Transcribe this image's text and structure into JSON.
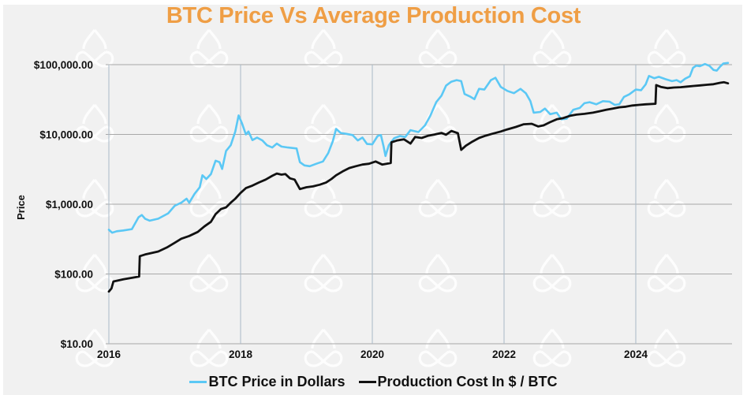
{
  "chart_data": {
    "type": "line",
    "title": "BTC Price Vs Average Production Cost",
    "xlabel": "",
    "ylabel": "Price",
    "y_scale": "log",
    "ylim": [
      10,
      100000
    ],
    "xlim": [
      2016.0,
      2025.4
    ],
    "y_ticks": [
      {
        "value": 100000,
        "label": "$100,000.00"
      },
      {
        "value": 10000,
        "label": "$10,000.00"
      },
      {
        "value": 1000,
        "label": "$1,000.00"
      },
      {
        "value": 100,
        "label": "$100.00"
      },
      {
        "value": 10,
        "label": "$10.00"
      }
    ],
    "x_ticks": [
      {
        "value": 2016,
        "label": "2016"
      },
      {
        "value": 2018,
        "label": "2018"
      },
      {
        "value": 2020,
        "label": "2020"
      },
      {
        "value": 2022,
        "label": "2022"
      },
      {
        "value": 2024,
        "label": "2024"
      }
    ],
    "grid": true,
    "legend_position": "bottom",
    "series": [
      {
        "name": "BTC Price in Dollars",
        "color": "#5bc8f5",
        "points": [
          [
            2016.0,
            430
          ],
          [
            2016.05,
            390
          ],
          [
            2016.12,
            410
          ],
          [
            2016.22,
            420
          ],
          [
            2016.35,
            440
          ],
          [
            2016.45,
            650
          ],
          [
            2016.5,
            700
          ],
          [
            2016.55,
            620
          ],
          [
            2016.62,
            580
          ],
          [
            2016.75,
            620
          ],
          [
            2016.9,
            740
          ],
          [
            2017.0,
            950
          ],
          [
            2017.1,
            1050
          ],
          [
            2017.18,
            1200
          ],
          [
            2017.22,
            1050
          ],
          [
            2017.3,
            1400
          ],
          [
            2017.38,
            1750
          ],
          [
            2017.42,
            2600
          ],
          [
            2017.48,
            2300
          ],
          [
            2017.55,
            2700
          ],
          [
            2017.62,
            4200
          ],
          [
            2017.68,
            4000
          ],
          [
            2017.72,
            3200
          ],
          [
            2017.78,
            5800
          ],
          [
            2017.85,
            7000
          ],
          [
            2017.92,
            11000
          ],
          [
            2017.97,
            18700
          ],
          [
            2018.02,
            14500
          ],
          [
            2018.08,
            10000
          ],
          [
            2018.12,
            11000
          ],
          [
            2018.18,
            8300
          ],
          [
            2018.25,
            9000
          ],
          [
            2018.33,
            8200
          ],
          [
            2018.4,
            7000
          ],
          [
            2018.48,
            6500
          ],
          [
            2018.55,
            7400
          ],
          [
            2018.62,
            6700
          ],
          [
            2018.72,
            6500
          ],
          [
            2018.85,
            6300
          ],
          [
            2018.9,
            4000
          ],
          [
            2018.97,
            3600
          ],
          [
            2019.05,
            3500
          ],
          [
            2019.15,
            3800
          ],
          [
            2019.25,
            4100
          ],
          [
            2019.33,
            5400
          ],
          [
            2019.4,
            8000
          ],
          [
            2019.45,
            12000
          ],
          [
            2019.52,
            10500
          ],
          [
            2019.6,
            10200
          ],
          [
            2019.7,
            9800
          ],
          [
            2019.78,
            8200
          ],
          [
            2019.85,
            9000
          ],
          [
            2019.92,
            7300
          ],
          [
            2020.0,
            7200
          ],
          [
            2020.08,
            9500
          ],
          [
            2020.13,
            9800
          ],
          [
            2020.17,
            6800
          ],
          [
            2020.2,
            4900
          ],
          [
            2020.25,
            7000
          ],
          [
            2020.33,
            8800
          ],
          [
            2020.42,
            9500
          ],
          [
            2020.5,
            9200
          ],
          [
            2020.58,
            11500
          ],
          [
            2020.7,
            10800
          ],
          [
            2020.8,
            13500
          ],
          [
            2020.88,
            18500
          ],
          [
            2020.97,
            29000
          ],
          [
            2021.05,
            36000
          ],
          [
            2021.12,
            50000
          ],
          [
            2021.2,
            57000
          ],
          [
            2021.28,
            60000
          ],
          [
            2021.35,
            58000
          ],
          [
            2021.4,
            38000
          ],
          [
            2021.48,
            35000
          ],
          [
            2021.55,
            32000
          ],
          [
            2021.62,
            45000
          ],
          [
            2021.7,
            44000
          ],
          [
            2021.8,
            60000
          ],
          [
            2021.87,
            65000
          ],
          [
            2021.95,
            48000
          ],
          [
            2022.05,
            42000
          ],
          [
            2022.15,
            39000
          ],
          [
            2022.25,
            45000
          ],
          [
            2022.33,
            39000
          ],
          [
            2022.4,
            30000
          ],
          [
            2022.45,
            20500
          ],
          [
            2022.55,
            21000
          ],
          [
            2022.62,
            23500
          ],
          [
            2022.7,
            19500
          ],
          [
            2022.8,
            20500
          ],
          [
            2022.87,
            16500
          ],
          [
            2022.95,
            16800
          ],
          [
            2023.05,
            22500
          ],
          [
            2023.15,
            24000
          ],
          [
            2023.22,
            28000
          ],
          [
            2023.3,
            29000
          ],
          [
            2023.4,
            27000
          ],
          [
            2023.5,
            30000
          ],
          [
            2023.6,
            29500
          ],
          [
            2023.68,
            26500
          ],
          [
            2023.75,
            27000
          ],
          [
            2023.82,
            34500
          ],
          [
            2023.9,
            37500
          ],
          [
            2024.0,
            44000
          ],
          [
            2024.08,
            43000
          ],
          [
            2024.15,
            52000
          ],
          [
            2024.2,
            69000
          ],
          [
            2024.28,
            64000
          ],
          [
            2024.35,
            67000
          ],
          [
            2024.45,
            62000
          ],
          [
            2024.55,
            58000
          ],
          [
            2024.62,
            60000
          ],
          [
            2024.68,
            56000
          ],
          [
            2024.75,
            63000
          ],
          [
            2024.82,
            68000
          ],
          [
            2024.87,
            90000
          ],
          [
            2024.92,
            97000
          ],
          [
            2024.97,
            95000
          ],
          [
            2025.05,
            102000
          ],
          [
            2025.12,
            96000
          ],
          [
            2025.18,
            84000
          ],
          [
            2025.23,
            82000
          ],
          [
            2025.28,
            94000
          ],
          [
            2025.33,
            104000
          ],
          [
            2025.4,
            106000
          ]
        ]
      },
      {
        "name": "Production Cost In $ / BTC",
        "color": "#111111",
        "points": [
          [
            2016.0,
            56
          ],
          [
            2016.04,
            62
          ],
          [
            2016.07,
            78
          ],
          [
            2016.12,
            80
          ],
          [
            2016.22,
            84
          ],
          [
            2016.35,
            88
          ],
          [
            2016.46,
            92
          ],
          [
            2016.47,
            180
          ],
          [
            2016.55,
            190
          ],
          [
            2016.65,
            200
          ],
          [
            2016.75,
            210
          ],
          [
            2016.88,
            240
          ],
          [
            2017.0,
            280
          ],
          [
            2017.1,
            320
          ],
          [
            2017.22,
            350
          ],
          [
            2017.35,
            400
          ],
          [
            2017.45,
            480
          ],
          [
            2017.55,
            560
          ],
          [
            2017.62,
            720
          ],
          [
            2017.7,
            850
          ],
          [
            2017.78,
            900
          ],
          [
            2017.85,
            1050
          ],
          [
            2017.92,
            1200
          ],
          [
            2018.0,
            1450
          ],
          [
            2018.08,
            1700
          ],
          [
            2018.18,
            1850
          ],
          [
            2018.28,
            2050
          ],
          [
            2018.38,
            2250
          ],
          [
            2018.48,
            2550
          ],
          [
            2018.55,
            2750
          ],
          [
            2018.62,
            2650
          ],
          [
            2018.68,
            2700
          ],
          [
            2018.75,
            2350
          ],
          [
            2018.82,
            2250
          ],
          [
            2018.9,
            1650
          ],
          [
            2019.0,
            1750
          ],
          [
            2019.1,
            1800
          ],
          [
            2019.2,
            1900
          ],
          [
            2019.3,
            2050
          ],
          [
            2019.38,
            2300
          ],
          [
            2019.45,
            2600
          ],
          [
            2019.55,
            2950
          ],
          [
            2019.65,
            3300
          ],
          [
            2019.75,
            3500
          ],
          [
            2019.85,
            3700
          ],
          [
            2019.95,
            3800
          ],
          [
            2020.05,
            4100
          ],
          [
            2020.15,
            3700
          ],
          [
            2020.28,
            3900
          ],
          [
            2020.29,
            7700
          ],
          [
            2020.38,
            8200
          ],
          [
            2020.48,
            8500
          ],
          [
            2020.58,
            7400
          ],
          [
            2020.65,
            9200
          ],
          [
            2020.75,
            8900
          ],
          [
            2020.85,
            9600
          ],
          [
            2020.95,
            10000
          ],
          [
            2021.05,
            10500
          ],
          [
            2021.12,
            9900
          ],
          [
            2021.2,
            11200
          ],
          [
            2021.25,
            10800
          ],
          [
            2021.3,
            10400
          ],
          [
            2021.35,
            6000
          ],
          [
            2021.42,
            6900
          ],
          [
            2021.52,
            7900
          ],
          [
            2021.62,
            8900
          ],
          [
            2021.72,
            9600
          ],
          [
            2021.82,
            10200
          ],
          [
            2021.95,
            11000
          ],
          [
            2022.05,
            11800
          ],
          [
            2022.18,
            12800
          ],
          [
            2022.3,
            14000
          ],
          [
            2022.42,
            14200
          ],
          [
            2022.52,
            13000
          ],
          [
            2022.6,
            13500
          ],
          [
            2022.7,
            15000
          ],
          [
            2022.8,
            16500
          ],
          [
            2022.9,
            17200
          ],
          [
            2023.0,
            18500
          ],
          [
            2023.1,
            19200
          ],
          [
            2023.22,
            19700
          ],
          [
            2023.35,
            20500
          ],
          [
            2023.45,
            21500
          ],
          [
            2023.55,
            22500
          ],
          [
            2023.65,
            23500
          ],
          [
            2023.75,
            24500
          ],
          [
            2023.85,
            25000
          ],
          [
            2023.95,
            26000
          ],
          [
            2024.05,
            26500
          ],
          [
            2024.15,
            27000
          ],
          [
            2024.3,
            27500
          ],
          [
            2024.31,
            51000
          ],
          [
            2024.38,
            48000
          ],
          [
            2024.48,
            46000
          ],
          [
            2024.58,
            47000
          ],
          [
            2024.68,
            47500
          ],
          [
            2024.78,
            48500
          ],
          [
            2024.88,
            49500
          ],
          [
            2024.98,
            50500
          ],
          [
            2025.08,
            51500
          ],
          [
            2025.18,
            52500
          ],
          [
            2025.28,
            55000
          ],
          [
            2025.34,
            56000
          ],
          [
            2025.4,
            54000
          ]
        ]
      }
    ]
  },
  "watermark": {
    "icon": "logo-watermark-icon",
    "color": "#ffffff"
  },
  "legend": [
    {
      "label": "BTC Price in Dollars",
      "color": "#5bc8f5"
    },
    {
      "label": "Production Cost In $ / BTC",
      "color": "#111111"
    }
  ]
}
